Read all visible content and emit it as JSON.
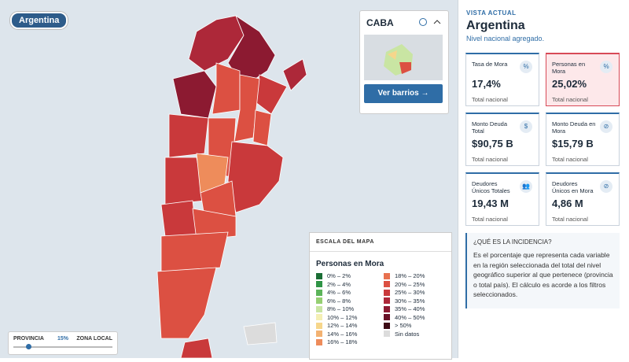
{
  "map": {
    "country_chip": "Argentina",
    "caba_card": {
      "title": "CABA",
      "button": "Ver barrios"
    },
    "legend": {
      "header": "ESCALA DEL MAPA",
      "title": "Personas en Mora",
      "items": [
        {
          "label": "0% – 2%",
          "color": "#1b6e35"
        },
        {
          "label": "2% – 4%",
          "color": "#2f9446"
        },
        {
          "label": "4% – 6%",
          "color": "#5cb45a"
        },
        {
          "label": "6% – 8%",
          "color": "#95cf72"
        },
        {
          "label": "8% – 10%",
          "color": "#c9e5a3"
        },
        {
          "label": "10% – 12%",
          "color": "#f4efb4"
        },
        {
          "label": "12% – 14%",
          "color": "#f6d68b"
        },
        {
          "label": "14% – 16%",
          "color": "#f3b272"
        },
        {
          "label": "16% – 18%",
          "color": "#ee8c5b"
        },
        {
          "label": "18% – 20%",
          "color": "#e8714f"
        },
        {
          "label": "20% – 25%",
          "color": "#dc5042"
        },
        {
          "label": "25% – 30%",
          "color": "#c9393b"
        },
        {
          "label": "30% – 35%",
          "color": "#ad2839"
        },
        {
          "label": "35% – 40%",
          "color": "#8c1a31"
        },
        {
          "label": "40% – 50%",
          "color": "#681026"
        },
        {
          "label": "> 50%",
          "color": "#3d0a15"
        },
        {
          "label": "Sin datos",
          "color": "#dcdcdc"
        }
      ]
    },
    "slider": {
      "left": "PROVINCIA",
      "value": "15%",
      "right": "ZONA LOCAL"
    }
  },
  "panel": {
    "kicker": "VISTA ACTUAL",
    "title": "Argentina",
    "subtitle": "Nivel nacional agregado.",
    "cards": [
      {
        "label": "Tasa de Mora",
        "value": "17,4%",
        "note": "Total nacional",
        "icon": "%"
      },
      {
        "label": "Personas en Mora",
        "value": "25,02%",
        "note": "Total nacional",
        "icon": "%"
      },
      {
        "label": "Monto Deuda Total",
        "value": "$90,75 B",
        "note": "Total nacional",
        "icon": "$"
      },
      {
        "label": "Monto Deuda en Mora",
        "value": "$15,79 B",
        "note": "Total nacional",
        "icon": "⊘"
      },
      {
        "label": "Deudores Únicos Totales",
        "value": "19,43 M",
        "note": "Total nacional",
        "icon": "👥"
      },
      {
        "label": "Deudores Únicos en Mora",
        "value": "4,86 M",
        "note": "Total nacional",
        "icon": "⊘"
      }
    ],
    "info": {
      "title": "¿QUÉ ES LA INCIDENCIA?",
      "text": "Es el porcentaje que representa cada variable en la región seleccionada del total del nivel geográfico superior al que pertenece (provincia o total país). El cálculo es acorde a los filtros seleccionados."
    }
  }
}
